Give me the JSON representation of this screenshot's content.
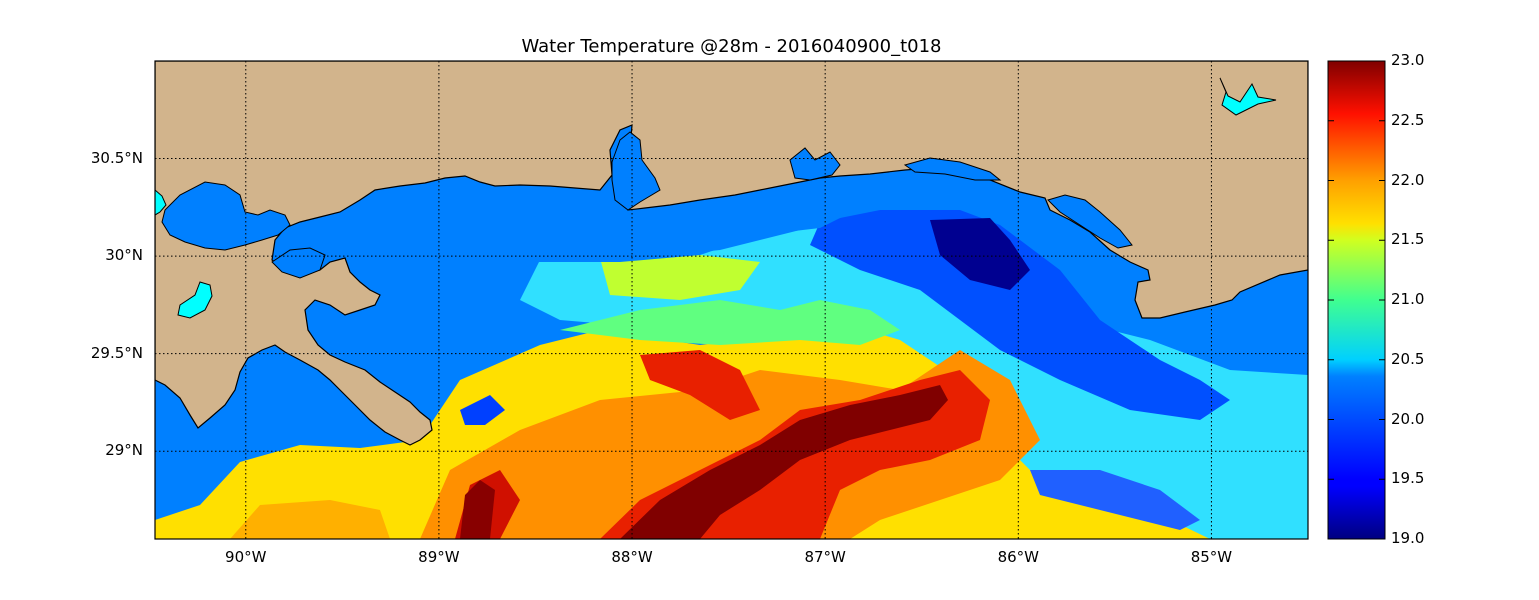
{
  "title": "Water Temperature @28m - 2016040900_t018",
  "map": {
    "lon_range": [
      -90.47,
      -84.5
    ],
    "lat_range": [
      28.55,
      31.0
    ],
    "lon_ticks": [
      {
        "value": -90,
        "label": "90°W"
      },
      {
        "value": -89,
        "label": "89°W"
      },
      {
        "value": -88,
        "label": "88°W"
      },
      {
        "value": -87,
        "label": "87°W"
      },
      {
        "value": -86,
        "label": "86°W"
      },
      {
        "value": -85,
        "label": "85°W"
      }
    ],
    "lat_ticks": [
      {
        "value": 30.5,
        "label": "30.5°N"
      },
      {
        "value": 30.0,
        "label": "30°N"
      },
      {
        "value": 29.5,
        "label": "29.5°N"
      },
      {
        "value": 29.0,
        "label": "29°N"
      }
    ],
    "grid": true,
    "colors": {
      "land": "#d2b48c",
      "masked_water": "#0080ff",
      "lakes": "#00ffff"
    }
  },
  "colorbar": {
    "colormap": "jet",
    "range": [
      19.0,
      23.0
    ],
    "ticks": [
      "19.0",
      "19.5",
      "20.0",
      "20.5",
      "21.0",
      "21.5",
      "22.0",
      "22.5",
      "23.0"
    ]
  }
}
